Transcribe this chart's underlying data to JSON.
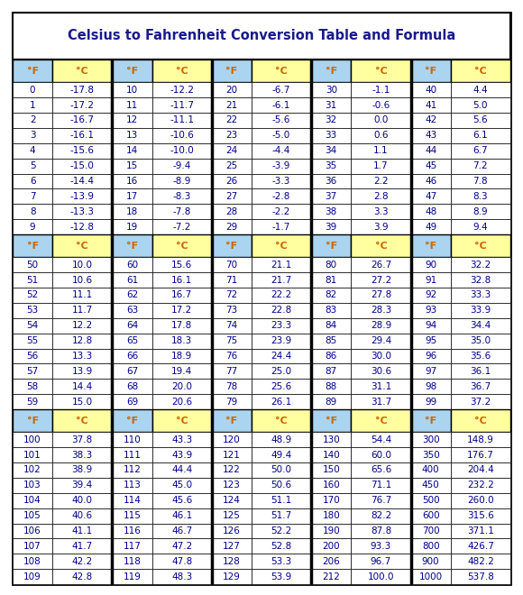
{
  "title": "Celsius to Fahrenheit Conversion Table and Formula",
  "header_f_color": "#aad4f0",
  "header_c_color": "#ffffa0",
  "section1": {
    "rows": [
      [
        0,
        -17.8,
        10,
        -12.2,
        20,
        -6.7,
        30,
        -1.1,
        40,
        4.4
      ],
      [
        1,
        -17.2,
        11,
        -11.7,
        21,
        -6.1,
        31,
        -0.6,
        41,
        5.0
      ],
      [
        2,
        -16.7,
        12,
        -11.1,
        22,
        -5.6,
        32,
        0.0,
        42,
        5.6
      ],
      [
        3,
        -16.1,
        13,
        -10.6,
        23,
        -5.0,
        33,
        0.6,
        43,
        6.1
      ],
      [
        4,
        -15.6,
        14,
        -10.0,
        24,
        -4.4,
        34,
        1.1,
        44,
        6.7
      ],
      [
        5,
        -15.0,
        15,
        -9.4,
        25,
        -3.9,
        35,
        1.7,
        45,
        7.2
      ],
      [
        6,
        -14.4,
        16,
        -8.9,
        26,
        -3.3,
        36,
        2.2,
        46,
        7.8
      ],
      [
        7,
        -13.9,
        17,
        -8.3,
        27,
        -2.8,
        37,
        2.8,
        47,
        8.3
      ],
      [
        8,
        -13.3,
        18,
        -7.8,
        28,
        -2.2,
        38,
        3.3,
        48,
        8.9
      ],
      [
        9,
        -12.8,
        19,
        -7.2,
        29,
        -1.7,
        39,
        3.9,
        49,
        9.4
      ]
    ]
  },
  "section2": {
    "rows": [
      [
        50,
        10.0,
        60,
        15.6,
        70,
        21.1,
        80,
        26.7,
        90,
        32.2
      ],
      [
        51,
        10.6,
        61,
        16.1,
        71,
        21.7,
        81,
        27.2,
        91,
        32.8
      ],
      [
        52,
        11.1,
        62,
        16.7,
        72,
        22.2,
        82,
        27.8,
        92,
        33.3
      ],
      [
        53,
        11.7,
        63,
        17.2,
        73,
        22.8,
        83,
        28.3,
        93,
        33.9
      ],
      [
        54,
        12.2,
        64,
        17.8,
        74,
        23.3,
        84,
        28.9,
        94,
        34.4
      ],
      [
        55,
        12.8,
        65,
        18.3,
        75,
        23.9,
        85,
        29.4,
        95,
        35.0
      ],
      [
        56,
        13.3,
        66,
        18.9,
        76,
        24.4,
        86,
        30.0,
        96,
        35.6
      ],
      [
        57,
        13.9,
        67,
        19.4,
        77,
        25.0,
        87,
        30.6,
        97,
        36.1
      ],
      [
        58,
        14.4,
        68,
        20.0,
        78,
        25.6,
        88,
        31.1,
        98,
        36.7
      ],
      [
        59,
        15.0,
        69,
        20.6,
        79,
        26.1,
        89,
        31.7,
        99,
        37.2
      ]
    ]
  },
  "section3": {
    "rows": [
      [
        100,
        37.8,
        110,
        43.3,
        120,
        48.9,
        130,
        54.4,
        300,
        148.9
      ],
      [
        101,
        38.3,
        111,
        43.9,
        121,
        49.4,
        140,
        60.0,
        350,
        176.7
      ],
      [
        102,
        38.9,
        112,
        44.4,
        122,
        50.0,
        150,
        65.6,
        400,
        204.4
      ],
      [
        103,
        39.4,
        113,
        45.0,
        123,
        50.6,
        160,
        71.1,
        450,
        232.2
      ],
      [
        104,
        40.0,
        114,
        45.6,
        124,
        51.1,
        170,
        76.7,
        500,
        260.0
      ],
      [
        105,
        40.6,
        115,
        46.1,
        125,
        51.7,
        180,
        82.2,
        600,
        315.6
      ],
      [
        106,
        41.1,
        116,
        46.7,
        126,
        52.2,
        190,
        87.8,
        700,
        371.1
      ],
      [
        107,
        41.7,
        117,
        47.2,
        127,
        52.8,
        200,
        93.3,
        800,
        426.7
      ],
      [
        108,
        42.2,
        118,
        47.8,
        128,
        53.3,
        206,
        96.7,
        900,
        482.2
      ],
      [
        109,
        42.8,
        119,
        48.3,
        129,
        53.9,
        212,
        100.0,
        1000,
        537.8
      ]
    ]
  },
  "bg_color": "#ffffff",
  "title_color": "#1a1a8c",
  "data_color": "#00008b",
  "header_text_f_color": "#cc6600",
  "header_text_c_color": "#cc6600",
  "header_label_f": "°F",
  "header_label_c": "°C"
}
